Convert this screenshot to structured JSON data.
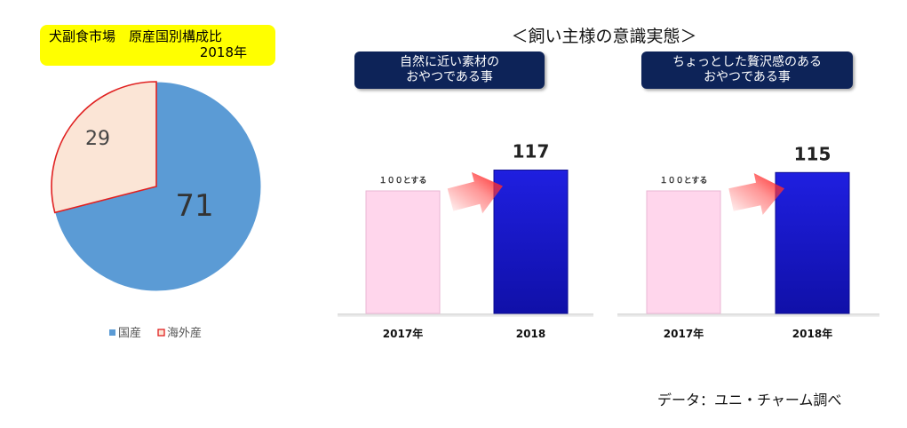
{
  "pie": {
    "title_line1": "犬副食市場　原産国別構成比",
    "title_line2": "2018年"
  },
  "section_title": "＜飼い主様の意識実態＞",
  "panels": [
    {
      "header_line1": "自然に近い素材の",
      "header_line2": "おやつである事"
    },
    {
      "header_line1": "ちょっとした贅沢感のある",
      "header_line2": "おやつである事"
    }
  ],
  "source": "データ：ユニ・チャーム調べ",
  "colors": {
    "domestic": "#5b9bd5",
    "overseas_fill": "#fbe5d6",
    "overseas_border": "#e02020",
    "bar_2017": "#ffd6ec",
    "bar_2018": "#1a1acf",
    "header_bg": "#0d2358",
    "title_bg": "#ffff00",
    "arrow": "#ff2b2b"
  },
  "chart_data": [
    {
      "type": "pie",
      "title": "犬副食市場　原産国別構成比 2018年",
      "categories": [
        "国産",
        "海外産"
      ],
      "values": [
        71,
        29
      ],
      "legend_position": "bottom"
    },
    {
      "type": "bar",
      "title": "自然に近い素材のおやつである事",
      "categories": [
        "2017年",
        "2018"
      ],
      "values": [
        100,
        117
      ],
      "data_labels": [
        "１００とする",
        "117"
      ]
    },
    {
      "type": "bar",
      "title": "ちょっとした贅沢感のあるおやつである事",
      "categories": [
        "2017年",
        "2018年"
      ],
      "values": [
        100,
        115
      ],
      "data_labels": [
        "１００とする",
        "115"
      ]
    }
  ]
}
